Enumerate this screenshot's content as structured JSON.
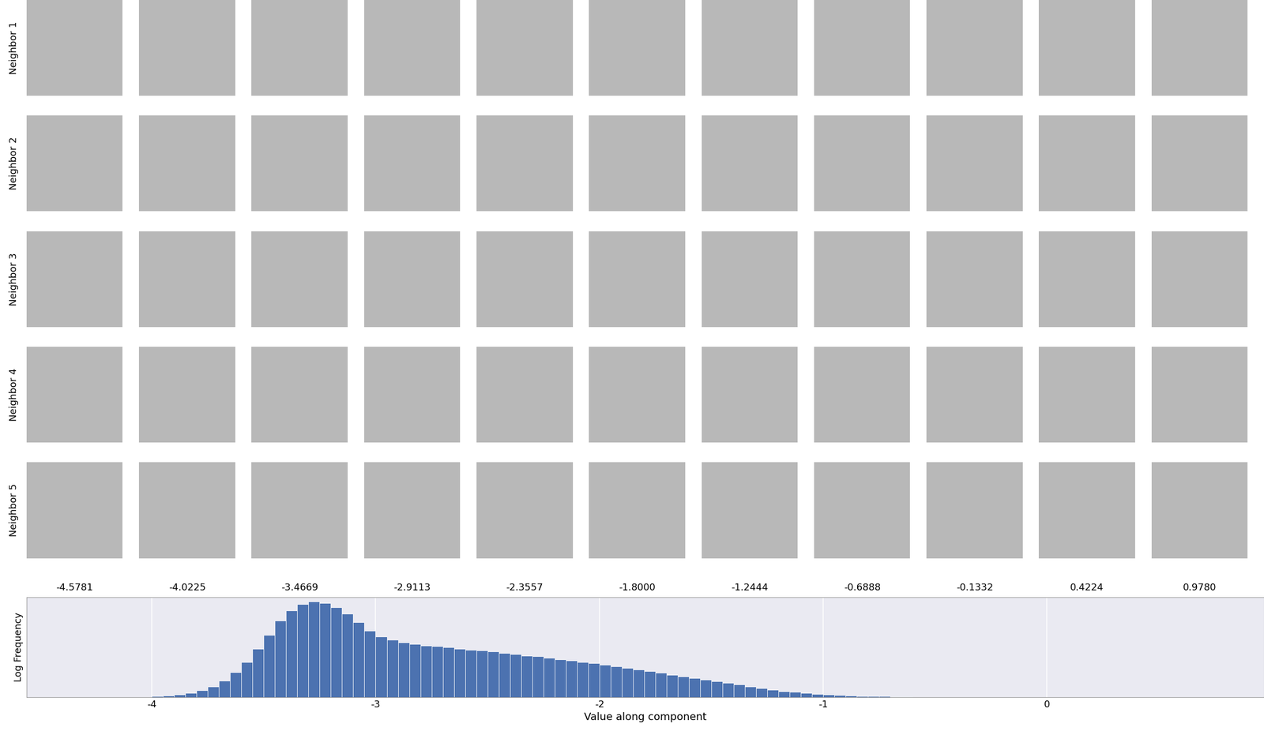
{
  "neighbors": {
    "row_labels": [
      "Neighbor 1",
      "Neighbor 2",
      "Neighbor 3",
      "Neighbor 4",
      "Neighbor 5"
    ],
    "column_labels": [
      "-4.5781",
      "-4.0225",
      "-3.4669",
      "-2.9113",
      "-2.3557",
      "-1.8000",
      "-1.2444",
      "-0.6888",
      "-0.1332",
      "0.4224",
      "0.9780"
    ]
  },
  "chart_data": {
    "type": "histogram",
    "xlabel": "Value along component",
    "ylabel": "Log Frequency",
    "bins": [
      -4.0,
      -3.95,
      -3.9,
      -3.85,
      -3.8,
      -3.75,
      -3.7,
      -3.65,
      -3.6,
      -3.55,
      -3.5,
      -3.45,
      -3.4,
      -3.35,
      -3.3,
      -3.25,
      -3.2,
      -3.15,
      -3.1,
      -3.05,
      -3.0,
      -2.95,
      -2.9,
      -2.85,
      -2.8,
      -2.75,
      -2.7,
      -2.65,
      -2.6,
      -2.55,
      -2.5,
      -2.45,
      -2.4,
      -2.35,
      -2.3,
      -2.25,
      -2.2,
      -2.15,
      -2.1,
      -2.05,
      -2.0,
      -1.95,
      -1.9,
      -1.85,
      -1.8,
      -1.75,
      -1.7,
      -1.65,
      -1.6,
      -1.55,
      -1.5,
      -1.45,
      -1.4,
      -1.35,
      -1.3,
      -1.25,
      -1.2,
      -1.15,
      -1.1,
      -1.05,
      -1.0,
      -0.95,
      -0.9,
      -0.85,
      -0.8,
      -0.75,
      -0.7,
      -0.65,
      -0.6
    ],
    "values": [
      1,
      2,
      3,
      5,
      8,
      13,
      20,
      30,
      42,
      58,
      75,
      92,
      104,
      112,
      115,
      113,
      108,
      100,
      90,
      80,
      73,
      69,
      66,
      64,
      62,
      61,
      60,
      58,
      57,
      56,
      55,
      53,
      52,
      50,
      49,
      47,
      45,
      44,
      42,
      41,
      39,
      37,
      35,
      33,
      31,
      29,
      27,
      25,
      23,
      21,
      19,
      17,
      15,
      13,
      11,
      9,
      7,
      6,
      5,
      4,
      3,
      2.5,
      2,
      1.5,
      1.2,
      1,
      0.7,
      0.5
    ],
    "color": "#4c72b0",
    "xlim": [
      -4.56,
      0.97
    ],
    "xticks": [
      -4,
      -3,
      -2,
      -1,
      0
    ],
    "ylim": [
      0,
      120
    ],
    "grid": true,
    "tick_labels": "x"
  }
}
